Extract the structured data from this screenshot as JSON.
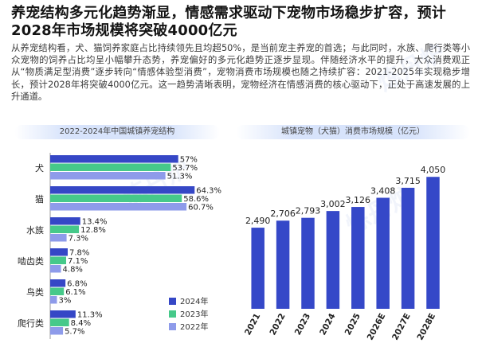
{
  "header": {
    "title": "养宠结构多元化趋势渐显，情感需求驱动下宠物市场稳步扩容，预计2028年市场规模将突破4000亿元"
  },
  "body": {
    "paragraph": "从养宠结构看，犬、猫饲养家庭占比持续领先且均超50%，是当前宠主养宠的首选；与此同时，水族、爬行类等小众宠物的饲养占比均呈小幅攀升态势，养宠偏好的多元化趋势正逐步显现。伴随经济水平的提升，大众消费观正从“物质满足型消费”逐步转向“情感体验型消费”，宠物消费市场规模也随之持续扩容：2021-2025年实现稳步增长，预计2028年将突破4000亿元。这一趋势清晰表明，宠物经济在情感消费的核心驱动下，正处于高速发展的上升通道。"
  },
  "watermark": {
    "text": "炼丹炉"
  },
  "left_panel": {
    "title": "2022-2024年中国城镇养宠结构"
  },
  "right_panel": {
    "title": "城镇宠物（犬猫）消费市场规模（亿元）"
  },
  "colors": {
    "series_2024": "#3547c6",
    "series_2023": "#46c98a",
    "series_2022": "#8e9bea",
    "bar_right": "#3548c8",
    "header_band": "#d7e3fb"
  },
  "chart_data": [
    {
      "type": "bar",
      "orientation": "horizontal",
      "title": "2022-2024年中国城镇养宠结构",
      "categories": [
        "犬",
        "猫",
        "水族",
        "啮齿类",
        "鸟类",
        "爬行类"
      ],
      "series": [
        {
          "name": "2024年",
          "values": [
            57,
            64.3,
            13.4,
            7.8,
            6.8,
            11.3
          ],
          "labels": [
            "57%",
            "64.3%",
            "13.4%",
            "7.8%",
            "6.8%",
            "11.3%"
          ]
        },
        {
          "name": "2023年",
          "values": [
            53.7,
            58.6,
            12.8,
            7.1,
            6.1,
            8.4
          ],
          "labels": [
            "53.7%",
            "58.6%",
            "12.8%",
            "7.1%",
            "6.1%",
            "8.4%"
          ]
        },
        {
          "name": "2022年",
          "values": [
            51.3,
            60.7,
            7.3,
            4.8,
            3,
            5.7
          ],
          "labels": [
            "51.3%",
            "60.7%",
            "7.3%",
            "4.8%",
            "3%",
            "5.7%"
          ]
        }
      ],
      "xlim": [
        0,
        72
      ],
      "legend_position": "bottom-right"
    },
    {
      "type": "bar",
      "title": "城镇宠物（犬猫）消费市场规模（亿元）",
      "categories": [
        "2021",
        "2022",
        "2023",
        "2024",
        "2025",
        "2026E",
        "2027E",
        "2028E"
      ],
      "values": [
        2490,
        2706,
        2793,
        3002,
        3126,
        3408,
        3715,
        4050
      ],
      "labels": [
        "2,490",
        "2,706",
        "2,793",
        "3,002",
        "3,126",
        "3,408",
        "3,715",
        "4,050"
      ],
      "ylim": [
        0,
        4300
      ]
    }
  ]
}
